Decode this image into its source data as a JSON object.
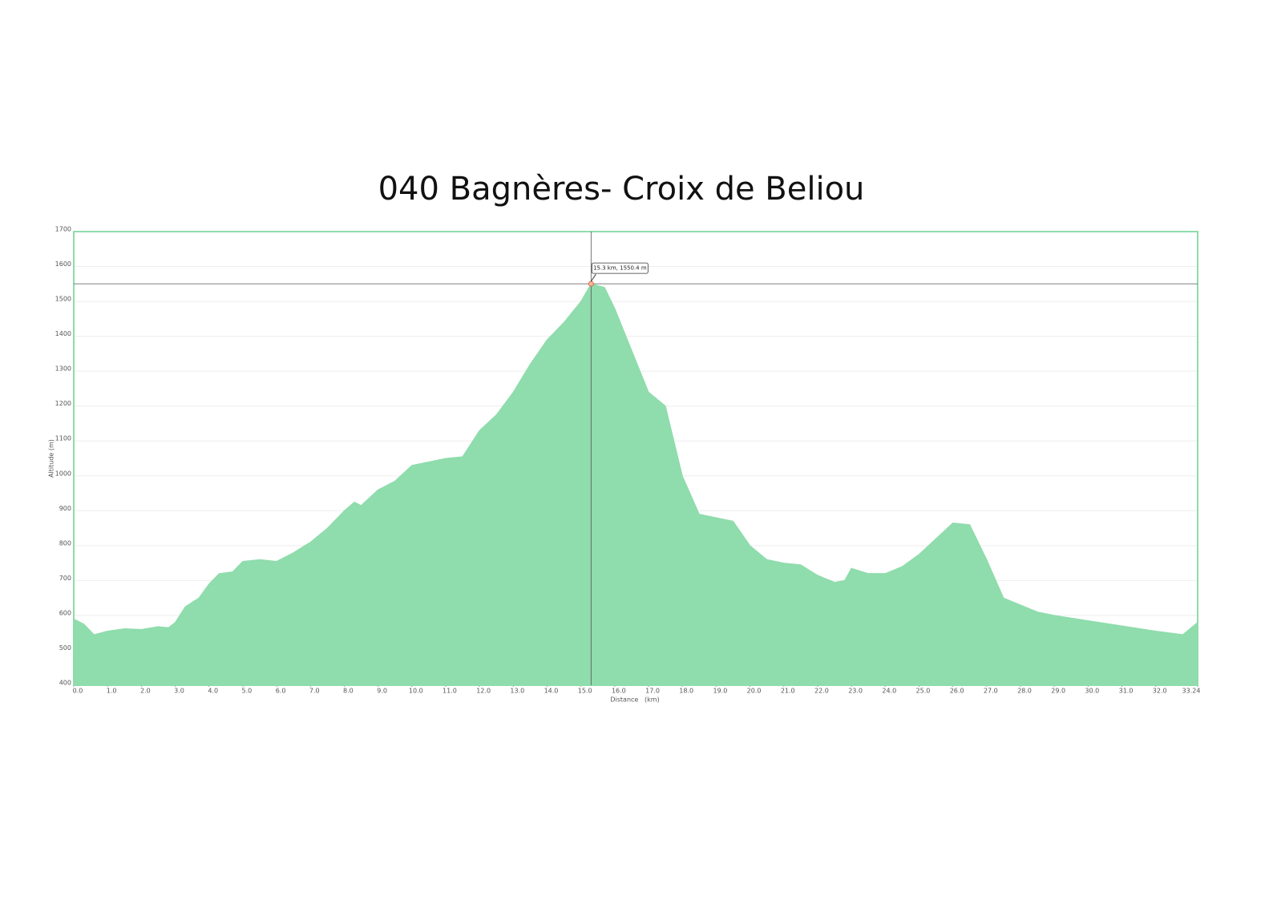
{
  "chart_data": {
    "type": "area",
    "title": "040 Bagnères- Croix de Beliou",
    "xlabel": "Distance   (km)",
    "ylabel": "Altitude (m)",
    "color": "#8fdcac",
    "grid": true,
    "x": [
      0,
      0.3,
      0.6,
      1.0,
      1.5,
      2.0,
      2.5,
      2.8,
      3.0,
      3.3,
      3.7,
      4.0,
      4.3,
      4.7,
      5.0,
      5.5,
      6.0,
      6.5,
      7.0,
      7.5,
      8.0,
      8.3,
      8.5,
      9.0,
      9.5,
      10.0,
      10.5,
      11.0,
      11.5,
      12.0,
      12.5,
      13.0,
      13.5,
      14.0,
      14.5,
      15.0,
      15.3,
      15.7,
      16.0,
      16.5,
      17.0,
      17.5,
      18.0,
      18.5,
      19.0,
      19.5,
      20.0,
      20.5,
      21.0,
      21.5,
      22.0,
      22.5,
      22.8,
      23.0,
      23.5,
      24.0,
      24.5,
      25.0,
      25.5,
      26.0,
      26.5,
      27.0,
      27.5,
      28.0,
      28.5,
      29.0,
      30.0,
      31.0,
      32.0,
      32.8,
      33.24
    ],
    "values": [
      590,
      575,
      545,
      555,
      562,
      560,
      568,
      565,
      580,
      625,
      650,
      690,
      720,
      725,
      755,
      760,
      755,
      780,
      810,
      850,
      900,
      925,
      915,
      960,
      985,
      1030,
      1040,
      1050,
      1055,
      1130,
      1175,
      1240,
      1320,
      1390,
      1440,
      1500,
      1550.4,
      1540,
      1480,
      1360,
      1240,
      1200,
      1000,
      890,
      880,
      870,
      800,
      760,
      750,
      745,
      715,
      695,
      700,
      735,
      720,
      720,
      740,
      775,
      820,
      865,
      860,
      760,
      650,
      630,
      610,
      600,
      585,
      570,
      555,
      545,
      580
    ],
    "xlim": [
      0,
      33.24
    ],
    "ylim": [
      400,
      1700
    ],
    "yticks": [
      400,
      500,
      600,
      700,
      800,
      900,
      1000,
      1100,
      1200,
      1300,
      1400,
      1500,
      1600,
      1700
    ],
    "xticks": [
      {
        "value": 0,
        "label": "0.0"
      },
      {
        "value": 1,
        "label": "1.0"
      },
      {
        "value": 2,
        "label": "2.0"
      },
      {
        "value": 3,
        "label": "3.0"
      },
      {
        "value": 4,
        "label": "4.0"
      },
      {
        "value": 5,
        "label": "5.0"
      },
      {
        "value": 6,
        "label": "6.0"
      },
      {
        "value": 7,
        "label": "7.0"
      },
      {
        "value": 8,
        "label": "8.0"
      },
      {
        "value": 9,
        "label": "9.0"
      },
      {
        "value": 10,
        "label": "10.0"
      },
      {
        "value": 11,
        "label": "11.0"
      },
      {
        "value": 12,
        "label": "12.0"
      },
      {
        "value": 13,
        "label": "13.0"
      },
      {
        "value": 14,
        "label": "14.0"
      },
      {
        "value": 15,
        "label": "15.0"
      },
      {
        "value": 16,
        "label": "16.0"
      },
      {
        "value": 17,
        "label": "17.0"
      },
      {
        "value": 18,
        "label": "18.0"
      },
      {
        "value": 19,
        "label": "19.0"
      },
      {
        "value": 20,
        "label": "20.0"
      },
      {
        "value": 21,
        "label": "21.0"
      },
      {
        "value": 22,
        "label": "22.0"
      },
      {
        "value": 23,
        "label": "23.0"
      },
      {
        "value": 24,
        "label": "24.0"
      },
      {
        "value": 25,
        "label": "25.0"
      },
      {
        "value": 26,
        "label": "26.0"
      },
      {
        "value": 27,
        "label": "27.0"
      },
      {
        "value": 28,
        "label": "28.0"
      },
      {
        "value": 29,
        "label": "29.0"
      },
      {
        "value": 30,
        "label": "30.0"
      },
      {
        "value": 31,
        "label": "31.0"
      },
      {
        "value": 32,
        "label": "32.0"
      },
      33.24
    ],
    "annotation": {
      "text": "15.3 km, 1550.4 m",
      "x": 15.3,
      "y": 1550.4
    }
  }
}
